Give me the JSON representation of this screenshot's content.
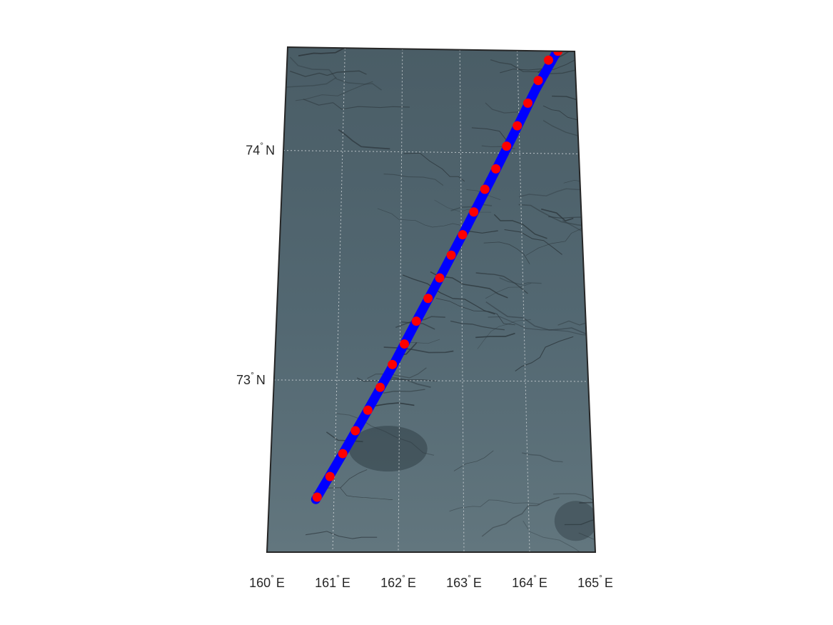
{
  "map": {
    "projection": "conic",
    "basemap": "sea-ice satellite imagery (grey-blue)",
    "colors": {
      "background_fill": "#5a6d75",
      "frame": "#262626",
      "grid": "#d8dde0",
      "track_primary": "#0000ff",
      "track_secondary": "#ff0000",
      "ice_crack": "#2a3338"
    },
    "grid": true,
    "grid_style": "dotted",
    "lon_range": [
      160,
      165
    ],
    "lat_range": [
      72.25,
      74.45
    ],
    "lon_ticks": [
      {
        "value": 160,
        "deg": "160",
        "suffix": "E"
      },
      {
        "value": 161,
        "deg": "161",
        "suffix": "E"
      },
      {
        "value": 162,
        "deg": "162",
        "suffix": "E"
      },
      {
        "value": 163,
        "deg": "163",
        "suffix": "E"
      },
      {
        "value": 164,
        "deg": "164",
        "suffix": "E"
      },
      {
        "value": 165,
        "deg": "165",
        "suffix": "E"
      }
    ],
    "lat_ticks": [
      {
        "value": 74,
        "deg": "74",
        "suffix": "N"
      },
      {
        "value": 73,
        "deg": "73",
        "suffix": "N"
      }
    ],
    "degree_symbol": "°"
  },
  "chart_data": {
    "type": "scatter",
    "title": "",
    "xlabel": "",
    "ylabel": "",
    "xlim": [
      160,
      165
    ],
    "ylim": [
      72.25,
      74.45
    ],
    "grid": true,
    "series": [
      {
        "color": "#0000ff",
        "marker": "filled-circle",
        "x_lon": [
          160.72,
          161.1,
          161.5,
          161.9,
          162.3,
          162.7,
          163.1,
          163.5,
          163.9,
          164.3,
          164.72
        ],
        "y_lat": [
          72.48,
          72.67,
          72.87,
          73.07,
          73.28,
          73.48,
          73.68,
          73.88,
          74.08,
          74.28,
          74.46
        ]
      },
      {
        "color": "#ff0000",
        "marker": "filled-circle",
        "x_lon": [
          160.74,
          160.93,
          161.12,
          161.31,
          161.5,
          161.69,
          161.88,
          162.07,
          162.26,
          162.45,
          162.64,
          162.83,
          163.02,
          163.21,
          163.4,
          163.59,
          163.78,
          163.97,
          164.16,
          164.35,
          164.54,
          164.71
        ],
        "y_lat": [
          72.49,
          72.58,
          72.68,
          72.78,
          72.87,
          72.97,
          73.07,
          73.16,
          73.26,
          73.36,
          73.45,
          73.55,
          73.64,
          73.74,
          73.84,
          73.93,
          74.03,
          74.12,
          74.22,
          74.32,
          74.41,
          74.45
        ]
      }
    ]
  }
}
